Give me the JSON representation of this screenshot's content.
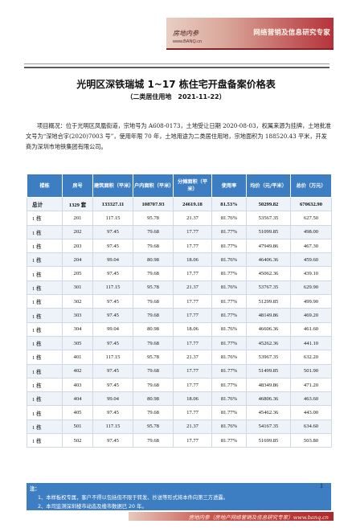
{
  "banner": {
    "logo": "房地内参",
    "url": "www.BANQ.cn",
    "slogan": "网络营销及信息研究专家"
  },
  "title": "光明区深铁瑞城 1~17 栋住宅开盘备案价格表",
  "subtitle": "（二类居住用地　2021-11-22）",
  "overview": "项目概况：位于光明区凤凰街道，宗地号为 A608-0173，土地受让日期 2020-08-03，权属来源为挂牌，土地批准文号为“深地合字(2020)7003 号”，使用年限 70 年，土地用途为二类居住用地，宗地面积为 188520.43 平米，开发商为深圳市地铁集团有限公司。",
  "table": {
    "headers": [
      "楼栋",
      "房号",
      "建筑面积（平米）",
      "户内面积（平米）",
      "分摊面积（平米）",
      "使用率",
      "均价（元/平米）",
      "总价（万元）"
    ],
    "total": [
      "总计",
      "1329 套",
      "133327.11",
      "108707.93",
      "24619.18",
      "81.53%",
      "50299.82",
      "670632.90"
    ],
    "rows": [
      [
        "1 栋",
        "201",
        "117.15",
        "95.78",
        "21.37",
        "81.76%",
        "53567.35",
        "627.50"
      ],
      [
        "1 栋",
        "202",
        "97.45",
        "79.68",
        "17.77",
        "81.77%",
        "51099.85",
        "498.00"
      ],
      [
        "1 栋",
        "203",
        "97.45",
        "79.68",
        "17.77",
        "81.77%",
        "47949.86",
        "467.30"
      ],
      [
        "1 栋",
        "204",
        "99.04",
        "80.98",
        "18.06",
        "81.76%",
        "46406.36",
        "459.60"
      ],
      [
        "1 栋",
        "205",
        "97.45",
        "79.68",
        "17.77",
        "81.77%",
        "45062.36",
        "439.10"
      ],
      [
        "1 栋",
        "301",
        "117.15",
        "95.78",
        "21.37",
        "81.76%",
        "53767.35",
        "629.90"
      ],
      [
        "1 栋",
        "302",
        "97.45",
        "79.68",
        "17.77",
        "81.77%",
        "51299.85",
        "499.90"
      ],
      [
        "1 栋",
        "303",
        "97.45",
        "79.68",
        "17.77",
        "81.77%",
        "48149.86",
        "469.20"
      ],
      [
        "1 栋",
        "304",
        "99.04",
        "80.98",
        "18.06",
        "81.76%",
        "46606.36",
        "461.60"
      ],
      [
        "1 栋",
        "305",
        "97.45",
        "79.68",
        "17.77",
        "81.77%",
        "45262.36",
        "441.10"
      ],
      [
        "1 栋",
        "401",
        "117.15",
        "95.78",
        "21.37",
        "81.76%",
        "53967.35",
        "632.20"
      ],
      [
        "1 栋",
        "402",
        "97.45",
        "79.68",
        "17.77",
        "81.77%",
        "51499.85",
        "501.90"
      ],
      [
        "1 栋",
        "403",
        "97.45",
        "79.68",
        "17.77",
        "81.77%",
        "48349.86",
        "471.20"
      ],
      [
        "1 栋",
        "404",
        "99.04",
        "80.98",
        "18.06",
        "81.76%",
        "46806.36",
        "463.60"
      ],
      [
        "1 栋",
        "405",
        "97.45",
        "79.68",
        "17.77",
        "81.77%",
        "45462.36",
        "443.00"
      ],
      [
        "1 栋",
        "501",
        "117.15",
        "95.78",
        "21.37",
        "81.76%",
        "54167.35",
        "634.60"
      ],
      [
        "1 栋",
        "502",
        "97.45",
        "79.68",
        "17.77",
        "81.77%",
        "51699.85",
        "503.80"
      ]
    ]
  },
  "footnote": {
    "head": "注：",
    "line1": "1、本样板权专属，客户不得以包括但不限于转发、抄送等形式将本件向第三方透露。",
    "line2": "2、本司监测深圳楼市动态及楼市数据已 20 年。"
  },
  "page_number": "1",
  "bottom_bar": "房地内参（房地产网络营销及信息研究专家）www.banq.cn",
  "colors": {
    "header_blue": "#3d7ec3",
    "banner_red": "#b5333a"
  }
}
